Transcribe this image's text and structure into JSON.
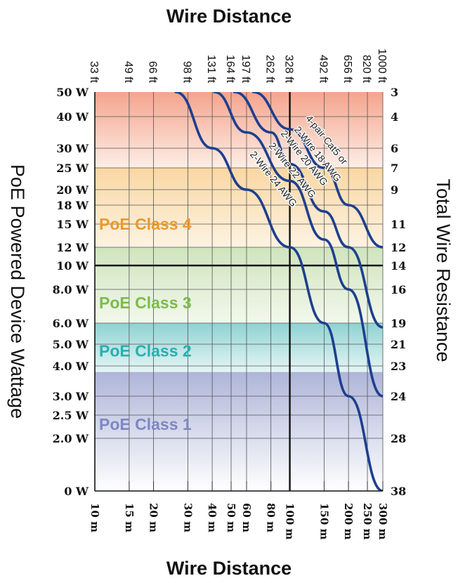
{
  "chart_data": {
    "type": "line",
    "title_top": "Wire Distance",
    "title_bottom": "Wire Distance",
    "ylabel": "PoE Powered Device Wattage",
    "ylabel_right": "Total Wire Resistance",
    "x_top_ticks": [
      "33 ft",
      "49 ft",
      "66 ft",
      "98 ft",
      "131 ft",
      "164 ft",
      "197 ft",
      "262 ft",
      "328 ft",
      "492 ft",
      "656 ft",
      "820 ft",
      "1000 ft"
    ],
    "x_bottom_ticks": [
      "10 m",
      "15 m",
      "20 m",
      "30 m",
      "40 m",
      "50 m",
      "60 m",
      "80 m",
      "100 m",
      "150 m",
      "200 m",
      "250 m",
      "300 m"
    ],
    "x_scale": "log",
    "xlim_m": [
      10,
      300
    ],
    "y_left_ticks": [
      "50 W",
      "40 W",
      "30 W",
      "25 W",
      "20 W",
      "18 W",
      "15 W",
      "12 W",
      "10 W",
      "8.0 W",
      "6.0 W",
      "5.0 W",
      "4.0 W",
      "3.0 W",
      "2.5 W",
      "2.0 W",
      "0 W"
    ],
    "y_right_ticks": [
      "3",
      "4",
      "6",
      "7",
      "9",
      "11",
      "12",
      "14",
      "16",
      "19",
      "21",
      "23",
      "24",
      "28",
      "38"
    ],
    "bands": [
      {
        "label": "PoE Class 4",
        "color": "#e89a2e",
        "ymin_w": 12,
        "ymax_w": 25
      },
      {
        "label": "PoE Class 3",
        "color": "#7cbb4c",
        "ymin_w": 6.0,
        "ymax_w": 12
      },
      {
        "label": "PoE Class 2",
        "color": "#2aaeb0",
        "ymin_w": 3.8,
        "ymax_w": 6.0
      },
      {
        "label": "PoE Class 1",
        "color": "#7f86c4",
        "ymin_w": 0,
        "ymax_w": 3.8
      }
    ],
    "series": [
      {
        "name": "2-Wire 24 AWG",
        "points": [
          [
            26,
            50
          ],
          [
            40,
            30
          ],
          [
            60,
            20
          ],
          [
            100,
            12
          ],
          [
            150,
            6
          ],
          [
            200,
            3
          ],
          [
            300,
            0
          ]
        ]
      },
      {
        "name": "2-Wire 22 AWG",
        "points": [
          [
            41,
            50
          ],
          [
            60,
            35
          ],
          [
            100,
            22
          ],
          [
            150,
            13
          ],
          [
            200,
            8
          ],
          [
            300,
            3
          ]
        ]
      },
      {
        "name": "2-Wire 20 AWG",
        "points": [
          [
            52,
            50
          ],
          [
            80,
            35
          ],
          [
            100,
            26
          ],
          [
            150,
            17
          ],
          [
            200,
            12
          ],
          [
            300,
            5.8
          ]
        ]
      },
      {
        "name": "4-pair Cat5 or 2-Wire 18 AWG",
        "points": [
          [
            65,
            50
          ],
          [
            100,
            36
          ],
          [
            150,
            25
          ],
          [
            200,
            18
          ],
          [
            300,
            12
          ]
        ]
      }
    ],
    "reference_lines": {
      "x_m": 100,
      "y_w": 10
    },
    "grid": true
  }
}
